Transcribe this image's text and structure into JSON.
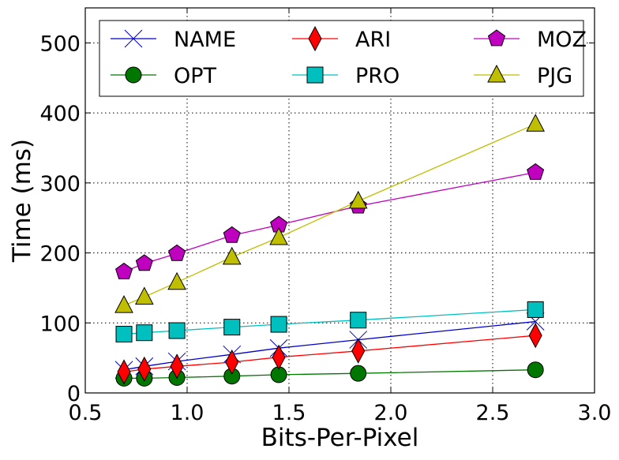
{
  "chart_data": {
    "type": "line",
    "title": "",
    "xlabel": "Bits-Per-Pixel",
    "ylabel": "Time (ms)",
    "xlim": [
      0.5,
      3.0
    ],
    "ylim": [
      0,
      550
    ],
    "xticks": [
      0.5,
      1.0,
      1.5,
      2.0,
      2.5,
      3.0
    ],
    "xtick_labels": [
      "0.5",
      "1.0",
      "1.5",
      "2.0",
      "2.5",
      "3.0"
    ],
    "yticks": [
      0,
      100,
      200,
      300,
      400,
      500
    ],
    "ytick_labels": [
      "0",
      "100",
      "200",
      "300",
      "400",
      "500"
    ],
    "grid": true,
    "legend": {
      "placement": "top",
      "columns": 3
    },
    "x": [
      0.69,
      0.79,
      0.95,
      1.22,
      1.45,
      1.84,
      2.71
    ],
    "series": [
      {
        "name": "NAME",
        "color": "#0000cc",
        "marker": "x",
        "values": [
          33,
          38,
          45,
          55,
          64,
          76,
          102
        ]
      },
      {
        "name": "OPT",
        "color": "#007700",
        "marker": "circle",
        "values": [
          21,
          21,
          22,
          24,
          26,
          28,
          33
        ]
      },
      {
        "name": "ARI",
        "color": "#ff0000",
        "marker": "thin-diamond",
        "values": [
          30,
          34,
          38,
          44,
          51,
          60,
          82
        ]
      },
      {
        "name": "PRO",
        "color": "#00bfbf",
        "marker": "square",
        "values": [
          84,
          86,
          89,
          94,
          98,
          104,
          119
        ]
      },
      {
        "name": "MOZ",
        "color": "#bf00bf",
        "marker": "pentagon",
        "values": [
          173,
          185,
          199,
          225,
          240,
          267,
          315
        ]
      },
      {
        "name": "PJG",
        "color": "#bfbf00",
        "marker": "triangle",
        "values": [
          125,
          137,
          158,
          194,
          222,
          274,
          384
        ]
      }
    ]
  }
}
